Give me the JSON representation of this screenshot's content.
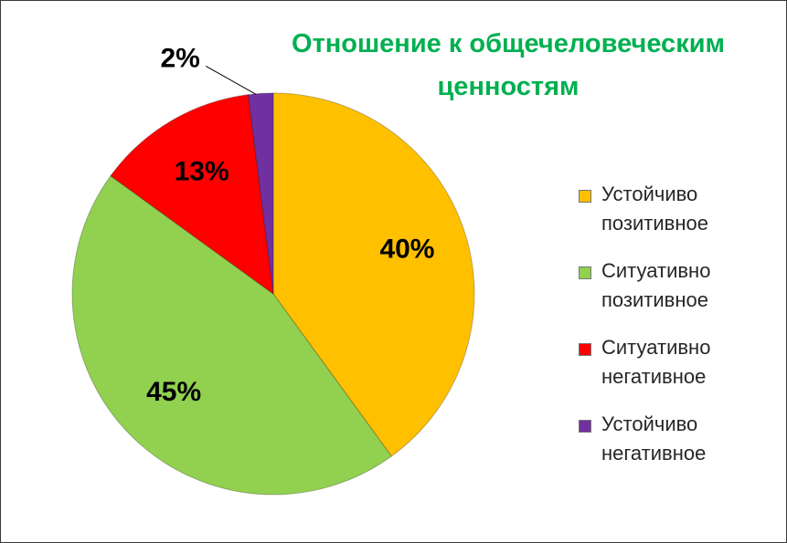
{
  "chart_data": {
    "type": "pie",
    "title": "Отношение к общечеловеческим ценностям",
    "categories": [
      "Устойчиво позитивное",
      "Ситуативно позитивное",
      "Ситуативно негативное",
      "Устойчиво негативное"
    ],
    "values": [
      40,
      45,
      13,
      2
    ],
    "value_labels": [
      "40%",
      "45%",
      "13%",
      "2%"
    ],
    "colors": [
      "#ffc000",
      "#92d050",
      "#ff0000",
      "#7030a0"
    ],
    "legend": "right"
  }
}
